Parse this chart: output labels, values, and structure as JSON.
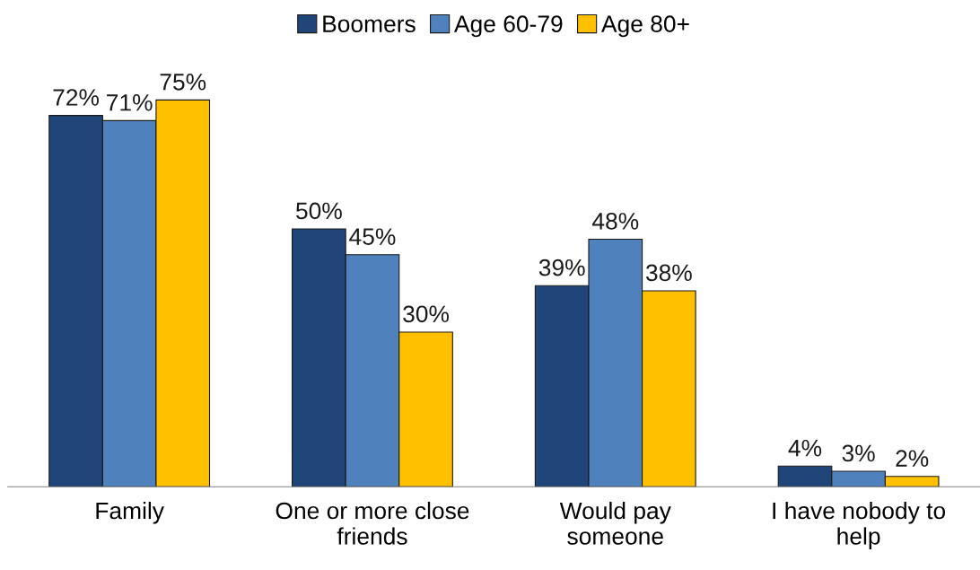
{
  "chart_data": {
    "type": "bar",
    "categories": [
      "Family",
      "One or more close\nfriends",
      "Would pay\nsomeone",
      "I have nobody to\nhelp"
    ],
    "series": [
      {
        "name": "Boomers",
        "color": "#1f4579",
        "values": [
          72,
          50,
          39,
          4
        ],
        "value_labels": [
          "72%",
          "50%",
          "39%",
          "4%"
        ]
      },
      {
        "name": "Age 60-79",
        "color": "#4f81bd",
        "values": [
          71,
          45,
          48,
          3
        ],
        "value_labels": [
          "71%",
          "45%",
          "48%",
          "3%"
        ]
      },
      {
        "name": "Age 80+",
        "color": "#ffc000",
        "values": [
          75,
          30,
          38,
          2
        ],
        "value_labels": [
          "75%",
          "30%",
          "38%",
          "2%"
        ]
      }
    ],
    "legend": "top",
    "grid": false
  }
}
